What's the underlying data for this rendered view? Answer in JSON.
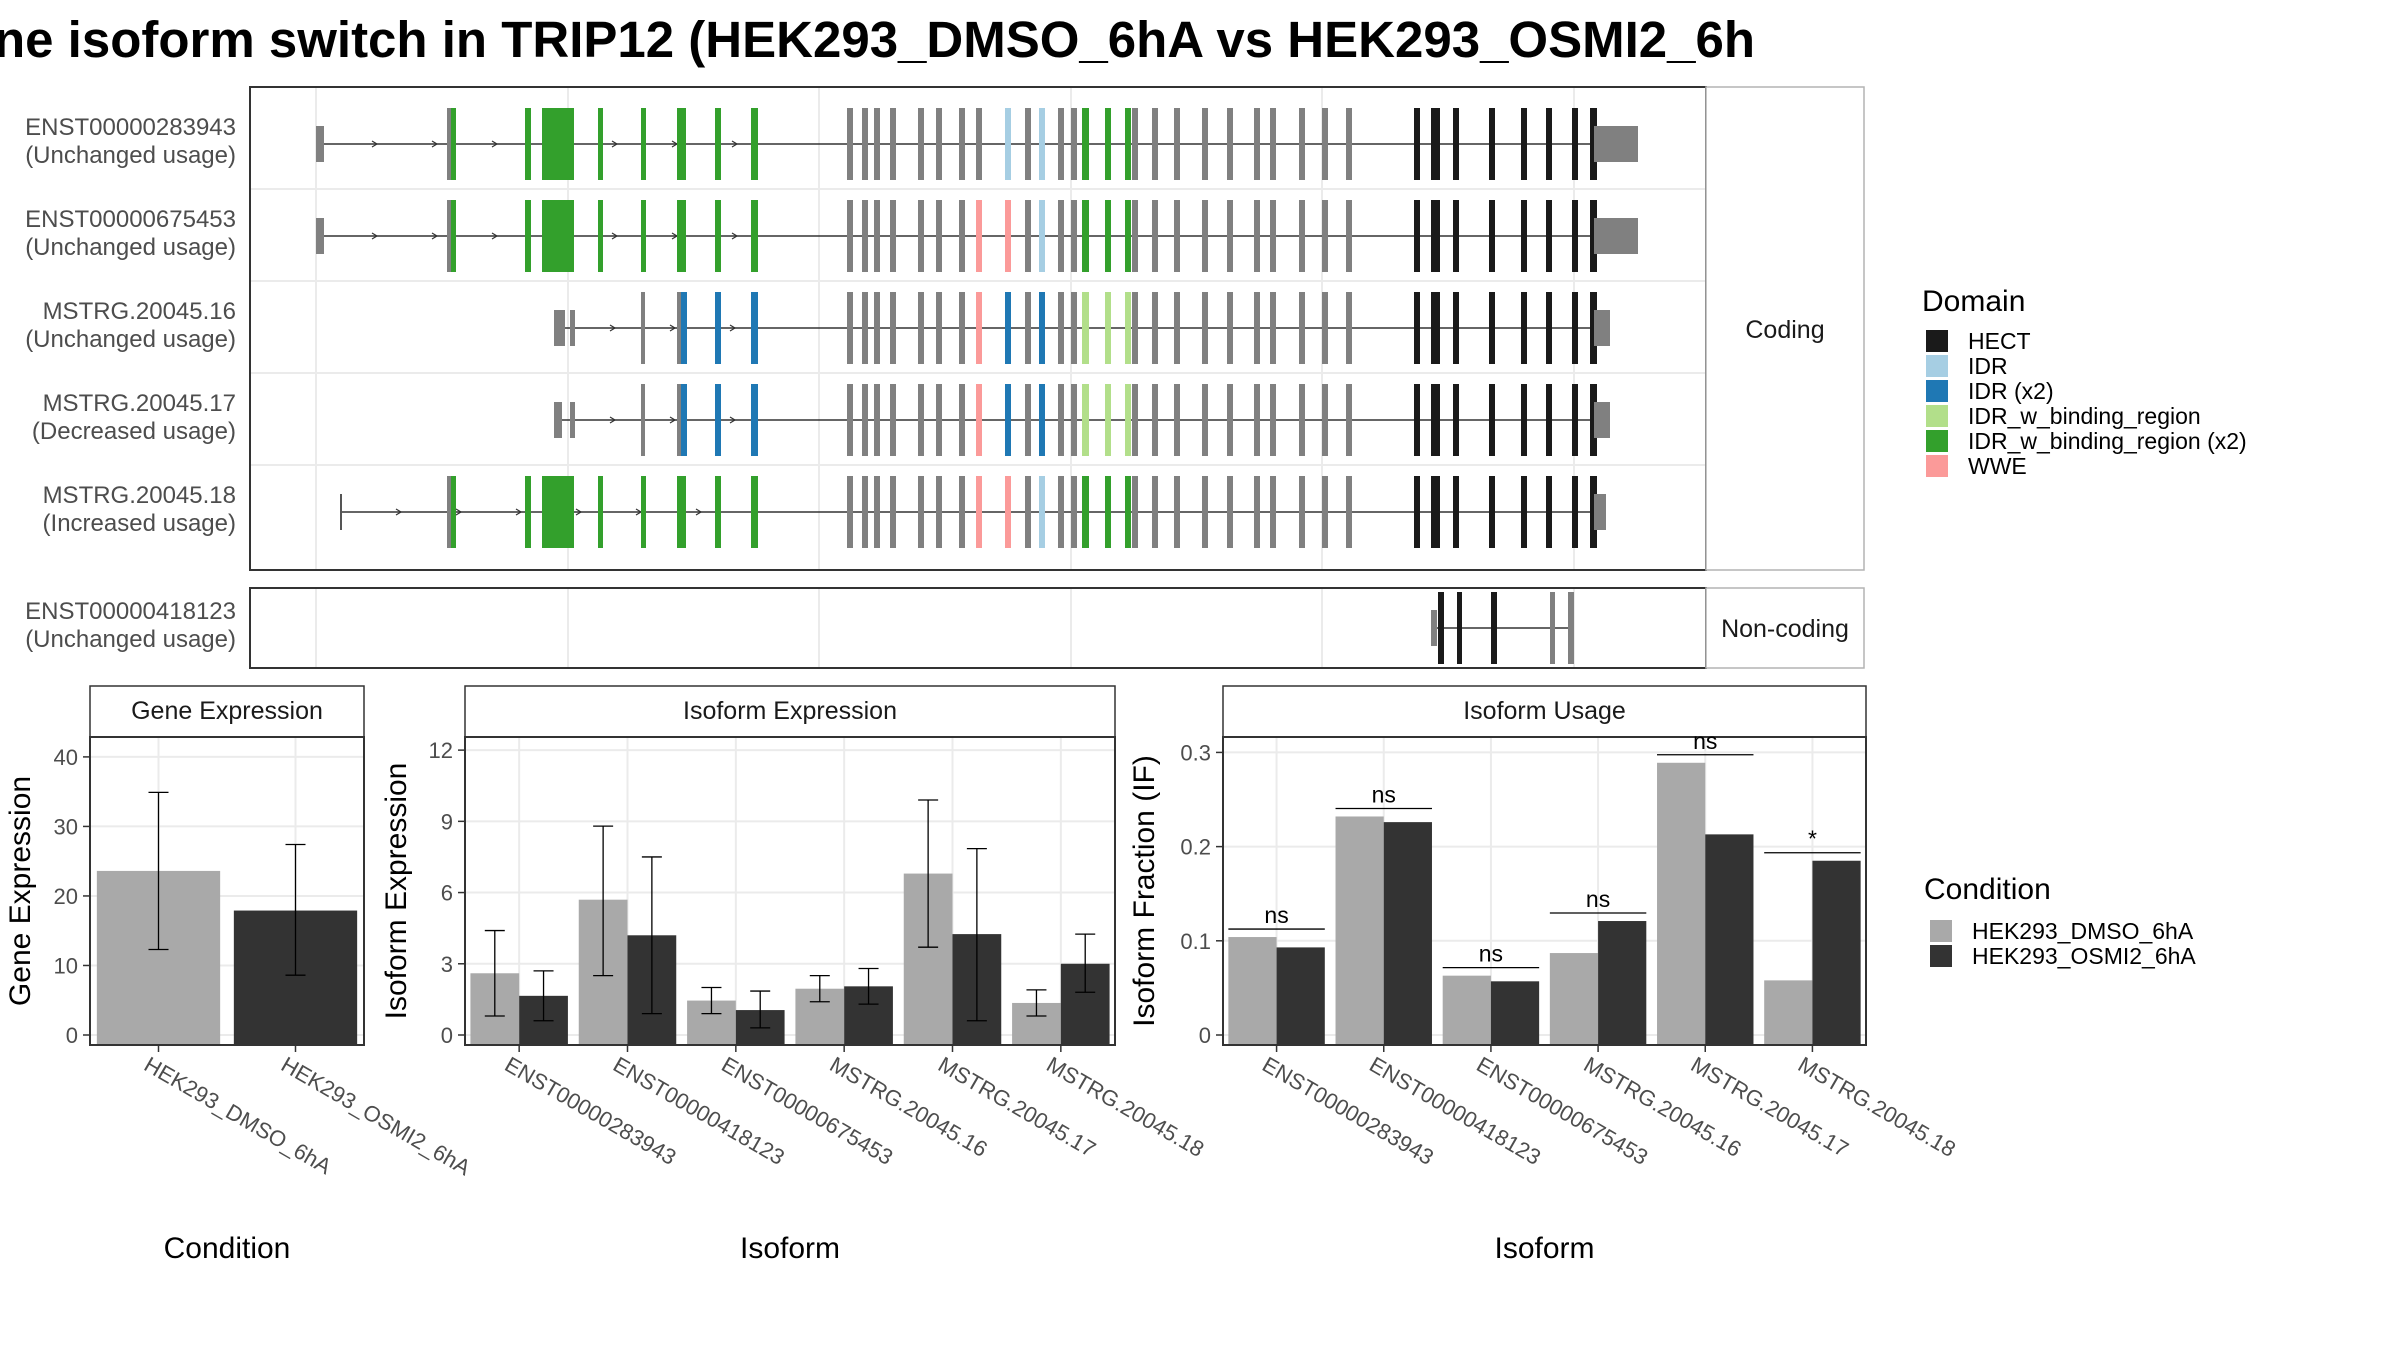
{
  "title": "ne isoform switch in TRIP12 (HEK293_DMSO_6hA vs HEK293_OSMI2_6h",
  "colors": {
    "HECT": "#1a1a1a",
    "IDR": "#a6cee3",
    "IDR (x2)": "#1f78b4",
    "IDR_w_binding_region": "#b2df8a",
    "IDR_w_binding_region (x2)": "#33a02c",
    "WWE": "#fb9a99",
    "none": "#808080",
    "cond1": "#a9a9a9",
    "cond2": "#333333"
  },
  "structure": {
    "coding_strip": "Coding",
    "noncoding_strip": "Non-coding",
    "coding_isoforms": [
      {
        "id": "ENST00000283943",
        "usage": "(Unchanged usage)"
      },
      {
        "id": "ENST00000675453",
        "usage": "(Unchanged usage)"
      },
      {
        "id": "MSTRG.20045.16",
        "usage": "(Unchanged usage)"
      },
      {
        "id": "MSTRG.20045.17",
        "usage": "(Decreased usage)"
      },
      {
        "id": "MSTRG.20045.18",
        "usage": "(Increased usage)"
      }
    ],
    "noncoding_isoforms": [
      {
        "id": "ENST00000418123",
        "usage": "(Unchanged usage)"
      }
    ]
  },
  "legend_domain": {
    "title": "Domain",
    "items": [
      "HECT",
      "IDR",
      "IDR (x2)",
      "IDR_w_binding_region",
      "IDR_w_binding_region (x2)",
      "WWE"
    ]
  },
  "legend_condition": {
    "title": "Condition",
    "items": [
      "HEK293_DMSO_6hA",
      "HEK293_OSMI2_6hA"
    ]
  },
  "chart_data": [
    {
      "type": "bar",
      "title": "Gene Expression",
      "xlabel": "Condition",
      "ylabel": "Gene Expression",
      "ylim": [
        0,
        42
      ],
      "yticks": [
        0,
        10,
        20,
        30,
        40
      ],
      "categories": [
        "HEK293_DMSO_6hA",
        "HEK293_OSMI2_6hA"
      ],
      "values": [
        23.6,
        17.9
      ],
      "error_low": [
        12.3,
        8.6
      ],
      "error_high": [
        34.9,
        27.4
      ]
    },
    {
      "type": "bar",
      "title": "Isoform Expression",
      "xlabel": "Isoform",
      "ylabel": "Isoform Expression",
      "ylim": [
        0,
        12.3
      ],
      "yticks": [
        0,
        3,
        6,
        9,
        12
      ],
      "categories": [
        "ENST00000283943",
        "ENST00000418123",
        "ENST00000675453",
        "MSTRG.20045.16",
        "MSTRG.20045.17",
        "MSTRG.20045.18"
      ],
      "series": [
        {
          "name": "HEK293_DMSO_6hA",
          "values": [
            2.6,
            5.7,
            1.45,
            1.95,
            6.8,
            1.35
          ],
          "error_low": [
            0.8,
            2.5,
            0.9,
            1.4,
            3.7,
            0.8
          ],
          "error_high": [
            4.4,
            8.8,
            2.0,
            2.5,
            9.9,
            1.9
          ]
        },
        {
          "name": "HEK293_OSMI2_6hA",
          "values": [
            1.65,
            4.2,
            1.05,
            2.05,
            4.25,
            3.0
          ],
          "error_low": [
            0.6,
            0.9,
            0.3,
            1.3,
            0.6,
            1.8
          ],
          "error_high": [
            2.7,
            7.5,
            1.85,
            2.8,
            7.85,
            4.25
          ]
        }
      ]
    },
    {
      "type": "bar",
      "title": "Isoform Usage",
      "xlabel": "Isoform",
      "ylabel": "Isoform Fraction (IF)",
      "ylim": [
        0,
        0.31
      ],
      "yticks": [
        0.0,
        0.1,
        0.2,
        0.3
      ],
      "categories": [
        "ENST00000283943",
        "ENST00000418123",
        "ENST00000675453",
        "MSTRG.20045.16",
        "MSTRG.20045.17",
        "MSTRG.20045.18"
      ],
      "series": [
        {
          "name": "HEK293_DMSO_6hA",
          "values": [
            0.104,
            0.232,
            0.063,
            0.087,
            0.289,
            0.058
          ]
        },
        {
          "name": "HEK293_OSMI2_6hA",
          "values": [
            0.093,
            0.226,
            0.057,
            0.121,
            0.213,
            0.185
          ]
        }
      ],
      "significance": [
        "ns",
        "ns",
        "ns",
        "ns",
        "ns",
        "*"
      ]
    }
  ]
}
